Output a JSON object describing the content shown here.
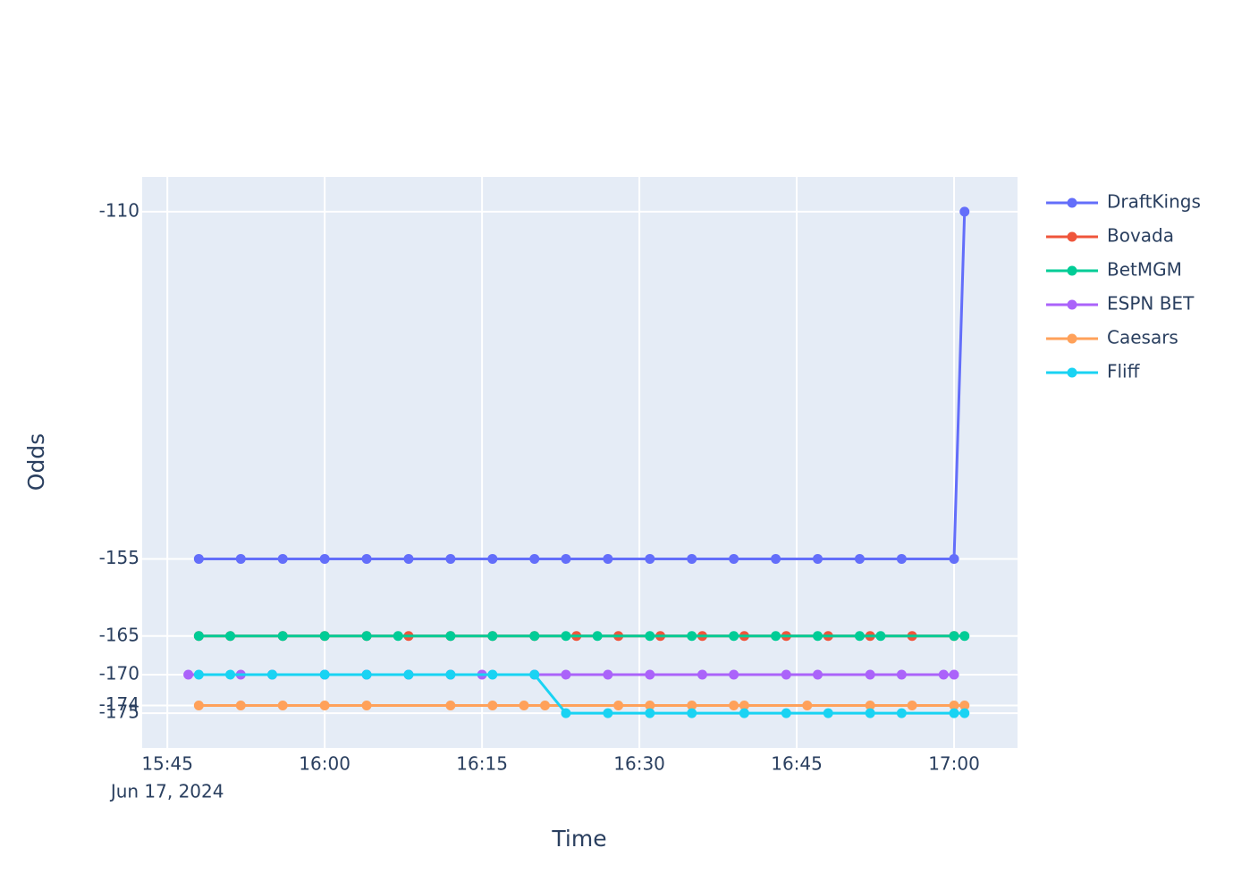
{
  "chart_data": {
    "type": "line",
    "x_label": "Time",
    "y_label": "Odds",
    "xlim": [
      "2024-06-17 15:42:36",
      "2024-06-17 17:06:03"
    ],
    "xticks": [
      {
        "value": "2024-06-17 15:45",
        "label": "15:45",
        "sublabel": "Jun 17, 2024"
      },
      {
        "value": "2024-06-17 16:00",
        "label": "16:00"
      },
      {
        "value": "2024-06-17 16:15",
        "label": "16:15"
      },
      {
        "value": "2024-06-17 16:30",
        "label": "16:30"
      },
      {
        "value": "2024-06-17 16:45",
        "label": "16:45"
      },
      {
        "value": "2024-06-17 17:00",
        "label": "17:00"
      }
    ],
    "ylim": [
      -179.5,
      -105.5
    ],
    "yticks": [
      -110,
      -155,
      -165,
      -170,
      -174,
      -175
    ],
    "grid": true,
    "legend": "right",
    "series": [
      {
        "name": "DraftKings",
        "color": "#636efa",
        "x": [
          "2024-06-17 15:48",
          "2024-06-17 15:52",
          "2024-06-17 15:56",
          "2024-06-17 16:00",
          "2024-06-17 16:04",
          "2024-06-17 16:08",
          "2024-06-17 16:12",
          "2024-06-17 16:16",
          "2024-06-17 16:20",
          "2024-06-17 16:23",
          "2024-06-17 16:27",
          "2024-06-17 16:31",
          "2024-06-17 16:35",
          "2024-06-17 16:39",
          "2024-06-17 16:43",
          "2024-06-17 16:47",
          "2024-06-17 16:51",
          "2024-06-17 16:55",
          "2024-06-17 17:00",
          "2024-06-17 17:01"
        ],
        "values": [
          -155,
          -155,
          -155,
          -155,
          -155,
          -155,
          -155,
          -155,
          -155,
          -155,
          -155,
          -155,
          -155,
          -155,
          -155,
          -155,
          -155,
          -155,
          -155,
          -110
        ]
      },
      {
        "name": "Bovada",
        "color": "#EF553B",
        "x": [
          "2024-06-17 15:48",
          "2024-06-17 15:51",
          "2024-06-17 15:56",
          "2024-06-17 16:00",
          "2024-06-17 16:04",
          "2024-06-17 16:08",
          "2024-06-17 16:12",
          "2024-06-17 16:16",
          "2024-06-17 16:20",
          "2024-06-17 16:24",
          "2024-06-17 16:28",
          "2024-06-17 16:32",
          "2024-06-17 16:36",
          "2024-06-17 16:40",
          "2024-06-17 16:44",
          "2024-06-17 16:48",
          "2024-06-17 16:52",
          "2024-06-17 16:56",
          "2024-06-17 17:00"
        ],
        "values": [
          -165,
          -165,
          -165,
          -165,
          -165,
          -165,
          -165,
          -165,
          -165,
          -165,
          -165,
          -165,
          -165,
          -165,
          -165,
          -165,
          -165,
          -165,
          -165
        ]
      },
      {
        "name": "BetMGM",
        "color": "#00cc96",
        "x": [
          "2024-06-17 15:48",
          "2024-06-17 15:51",
          "2024-06-17 15:56",
          "2024-06-17 16:00",
          "2024-06-17 16:04",
          "2024-06-17 16:07",
          "2024-06-17 16:12",
          "2024-06-17 16:16",
          "2024-06-17 16:20",
          "2024-06-17 16:23",
          "2024-06-17 16:26",
          "2024-06-17 16:31",
          "2024-06-17 16:35",
          "2024-06-17 16:39",
          "2024-06-17 16:43",
          "2024-06-17 16:47",
          "2024-06-17 16:51",
          "2024-06-17 16:53",
          "2024-06-17 17:00",
          "2024-06-17 17:01"
        ],
        "values": [
          -165,
          -165,
          -165,
          -165,
          -165,
          -165,
          -165,
          -165,
          -165,
          -165,
          -165,
          -165,
          -165,
          -165,
          -165,
          -165,
          -165,
          -165,
          -165,
          -165
        ]
      },
      {
        "name": "ESPN BET",
        "color": "#ab63fa",
        "x": [
          "2024-06-17 15:47",
          "2024-06-17 15:52",
          "2024-06-17 15:55",
          "2024-06-17 16:00",
          "2024-06-17 16:04",
          "2024-06-17 16:08",
          "2024-06-17 16:12",
          "2024-06-17 16:15",
          "2024-06-17 16:20",
          "2024-06-17 16:23",
          "2024-06-17 16:27",
          "2024-06-17 16:31",
          "2024-06-17 16:36",
          "2024-06-17 16:39",
          "2024-06-17 16:44",
          "2024-06-17 16:47",
          "2024-06-17 16:52",
          "2024-06-17 16:55",
          "2024-06-17 16:59",
          "2024-06-17 17:00"
        ],
        "values": [
          -170,
          -170,
          -170,
          -170,
          -170,
          -170,
          -170,
          -170,
          -170,
          -170,
          -170,
          -170,
          -170,
          -170,
          -170,
          -170,
          -170,
          -170,
          -170,
          -170
        ]
      },
      {
        "name": "Caesars",
        "color": "#FFA15A",
        "x": [
          "2024-06-17 15:48",
          "2024-06-17 15:52",
          "2024-06-17 15:56",
          "2024-06-17 16:00",
          "2024-06-17 16:04",
          "2024-06-17 16:12",
          "2024-06-17 16:16",
          "2024-06-17 16:19",
          "2024-06-17 16:21",
          "2024-06-17 16:28",
          "2024-06-17 16:31",
          "2024-06-17 16:35",
          "2024-06-17 16:39",
          "2024-06-17 16:40",
          "2024-06-17 16:46",
          "2024-06-17 16:52",
          "2024-06-17 16:56",
          "2024-06-17 17:00",
          "2024-06-17 17:01"
        ],
        "values": [
          -174,
          -174,
          -174,
          -174,
          -174,
          -174,
          -174,
          -174,
          -174,
          -174,
          -174,
          -174,
          -174,
          -174,
          -174,
          -174,
          -174,
          -174,
          -174
        ]
      },
      {
        "name": "Fliff",
        "color": "#19d3f3",
        "x": [
          "2024-06-17 15:48",
          "2024-06-17 15:51",
          "2024-06-17 15:55",
          "2024-06-17 16:00",
          "2024-06-17 16:04",
          "2024-06-17 16:08",
          "2024-06-17 16:12",
          "2024-06-17 16:16",
          "2024-06-17 16:20",
          "2024-06-17 16:23",
          "2024-06-17 16:27",
          "2024-06-17 16:31",
          "2024-06-17 16:35",
          "2024-06-17 16:40",
          "2024-06-17 16:44",
          "2024-06-17 16:48",
          "2024-06-17 16:52",
          "2024-06-17 16:55",
          "2024-06-17 17:00",
          "2024-06-17 17:01"
        ],
        "values": [
          -170,
          -170,
          -170,
          -170,
          -170,
          -170,
          -170,
          -170,
          -170,
          -175,
          -175,
          -175,
          -175,
          -175,
          -175,
          -175,
          -175,
          -175,
          -175,
          -175
        ]
      }
    ]
  }
}
